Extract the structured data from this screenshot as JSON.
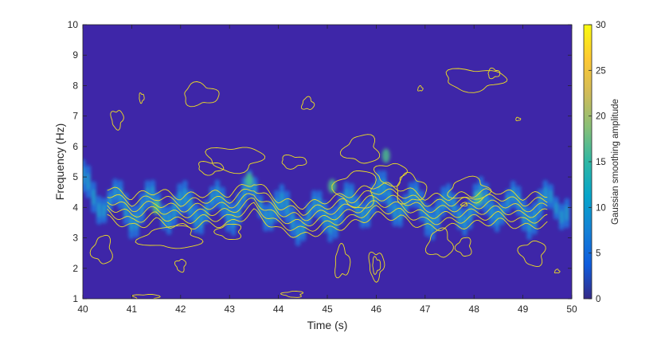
{
  "chart_data": {
    "type": "heatmap",
    "title": "",
    "xlabel": "Time (s)",
    "ylabel": "Frequency (Hz)",
    "xlim": [
      40,
      50
    ],
    "ylim": [
      1,
      10
    ],
    "xticks": [
      "40",
      "41",
      "42",
      "43",
      "44",
      "45",
      "46",
      "47",
      "48",
      "49",
      "50"
    ],
    "yticks": [
      "1",
      "2",
      "3",
      "4",
      "5",
      "6",
      "7",
      "8",
      "9",
      "10"
    ],
    "colorbar": {
      "label": "Gaussian smoothing amplitude",
      "range": [
        0,
        30
      ],
      "ticks": [
        "0",
        "5",
        "10",
        "15",
        "20",
        "25",
        "30"
      ],
      "colormap": [
        "#352a87",
        "#0f5cdd",
        "#1481d6",
        "#06a4ca",
        "#2eb7a4",
        "#87bf77",
        "#d1bb59",
        "#fec832",
        "#f9fb0e"
      ]
    },
    "background_color": "#3e26a8",
    "contour_color": "#f0e020",
    "ridge": {
      "description_free": true,
      "times": [
        40.0,
        40.5,
        41.0,
        41.5,
        42.0,
        42.5,
        43.0,
        43.5,
        44.0,
        44.5,
        45.0,
        45.5,
        46.0,
        46.5,
        47.0,
        47.5,
        48.0,
        48.5,
        49.0,
        49.5,
        50.0
      ],
      "frequencies": [
        4.6,
        4.2,
        3.9,
        4.1,
        3.9,
        4.0,
        4.0,
        4.4,
        3.8,
        3.6,
        3.8,
        4.0,
        4.3,
        4.2,
        3.9,
        3.9,
        4.0,
        4.1,
        3.9,
        4.0,
        4.2
      ]
    }
  }
}
